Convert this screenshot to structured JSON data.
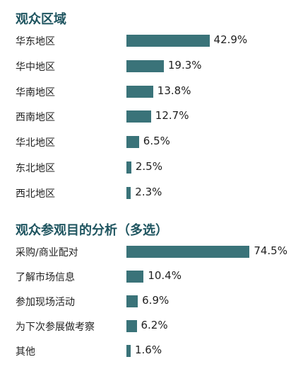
{
  "chart_data": [
    {
      "type": "bar",
      "orientation": "horizontal",
      "title": "观众区域",
      "categories": [
        "华东地区",
        "华中地区",
        "华南地区",
        "西南地区",
        "华北地区",
        "东北地区",
        "西北地区"
      ],
      "values": [
        42.9,
        19.3,
        13.8,
        12.7,
        6.5,
        2.5,
        2.3
      ],
      "value_labels": [
        "42.9%",
        "19.3%",
        "13.8%",
        "12.7%",
        "6.5%",
        "2.5%",
        "2.3%"
      ],
      "bar_color": "#3a7379",
      "xlim": [
        0,
        100
      ],
      "grid": false,
      "legend": "none"
    },
    {
      "type": "bar",
      "orientation": "horizontal",
      "title": "观众参观目的分析（多选）",
      "categories": [
        "采购/商业配对",
        "了解市场信息",
        "参加现场活动",
        "为下次参展做考察",
        "其他"
      ],
      "values": [
        74.5,
        10.4,
        6.9,
        6.2,
        1.6
      ],
      "value_labels": [
        "74.5%",
        "10.4%",
        "6.9%",
        "6.2%",
        "1.6%"
      ],
      "bar_color": "#3a7379",
      "xlim": [
        0,
        100
      ],
      "grid": false,
      "legend": "none"
    }
  ]
}
